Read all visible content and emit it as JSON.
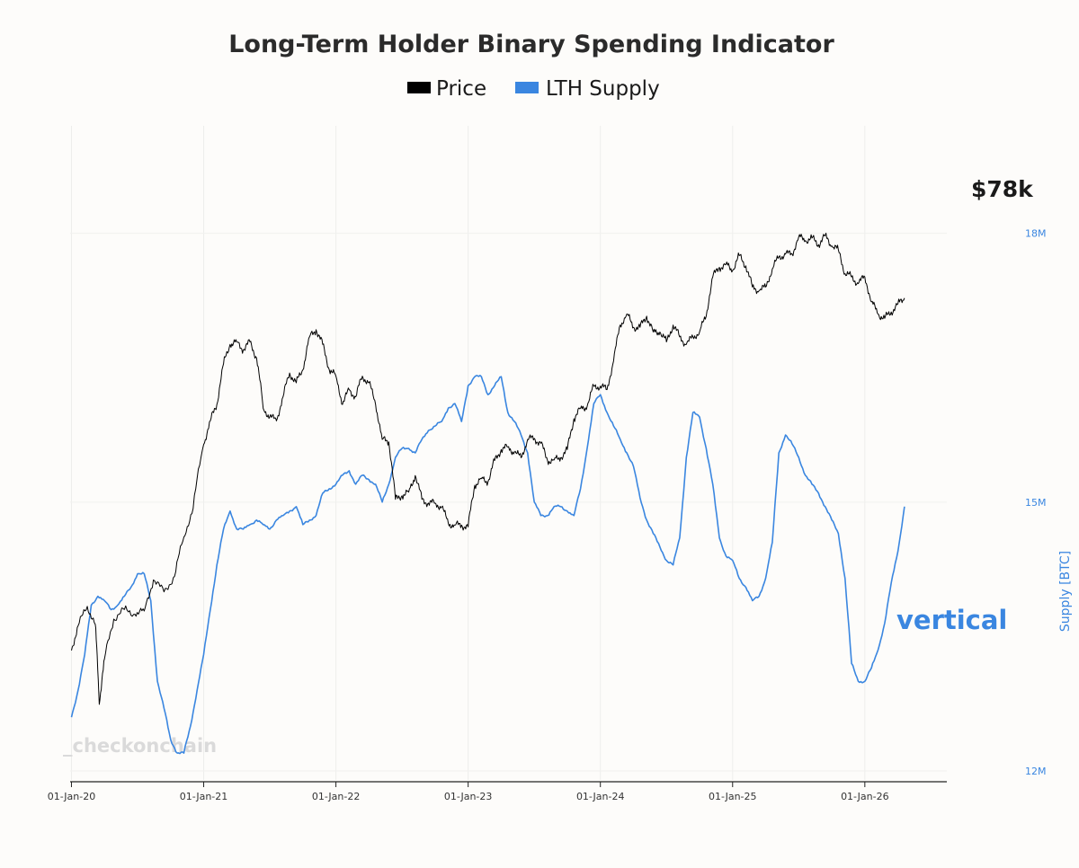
{
  "chart_data": {
    "type": "line",
    "title": "Long-Term Holder Binary Spending Indicator",
    "legend": [
      {
        "name": "Price",
        "color": "#000000"
      },
      {
        "name": "LTH Supply",
        "color": "#3a86e0"
      }
    ],
    "legend_position": "top-center",
    "xlabel": "",
    "x_ticks": [
      "01-Jan-20",
      "01-Jan-21",
      "01-Jan-22",
      "01-Jan-23",
      "01-Jan-24",
      "01-Jan-25",
      "01-Jan-26"
    ],
    "x_range": [
      2019.99,
      2026.62
    ],
    "y2_label": "Supply [BTC]",
    "y2_ticks": [
      "12M",
      "15M",
      "18M"
    ],
    "y2_range_millions": [
      11.9,
      19.2
    ],
    "price_label": "$78k",
    "supply_annotation": "vertical",
    "watermark": "_checkonchain",
    "series": [
      {
        "name": "Price",
        "color": "#000000",
        "scale": "log",
        "y_range_usd": [
          3000,
          250000
        ],
        "x": [
          2020.0,
          2020.05,
          2020.12,
          2020.18,
          2020.21,
          2020.25,
          2020.32,
          2020.4,
          2020.48,
          2020.55,
          2020.62,
          2020.7,
          2020.78,
          2020.85,
          2020.92,
          2021.0,
          2021.05,
          2021.1,
          2021.15,
          2021.2,
          2021.25,
          2021.3,
          2021.35,
          2021.4,
          2021.45,
          2021.5,
          2021.55,
          2021.6,
          2021.65,
          2021.7,
          2021.75,
          2021.8,
          2021.85,
          2021.9,
          2021.95,
          2022.0,
          2022.05,
          2022.1,
          2022.15,
          2022.2,
          2022.25,
          2022.3,
          2022.35,
          2022.4,
          2022.45,
          2022.5,
          2022.55,
          2022.6,
          2022.65,
          2022.7,
          2022.75,
          2022.8,
          2022.85,
          2022.9,
          2022.95,
          2023.0,
          2023.05,
          2023.1,
          2023.15,
          2023.2,
          2023.25,
          2023.3,
          2023.35,
          2023.4,
          2023.45,
          2023.5,
          2023.55,
          2023.6,
          2023.65,
          2023.7,
          2023.75,
          2023.8,
          2023.85,
          2023.9,
          2023.95,
          2024.0,
          2024.05,
          2024.1,
          2024.15,
          2024.2,
          2024.25,
          2024.3,
          2024.35,
          2024.4,
          2024.45,
          2024.5,
          2024.55,
          2024.6,
          2024.65,
          2024.7,
          2024.75,
          2024.8,
          2024.85,
          2024.9,
          2024.95,
          2025.0,
          2025.05,
          2025.1,
          2025.15,
          2025.2,
          2025.25,
          2025.3,
          2025.35,
          2025.4,
          2025.45,
          2025.5,
          2025.55,
          2025.6,
          2025.65,
          2025.7,
          2025.75,
          2025.8,
          2025.85,
          2025.9,
          2025.95,
          2026.0,
          2026.05,
          2026.1,
          2026.15,
          2026.2,
          2026.25,
          2026.3
        ],
        "values": [
          7200,
          8500,
          9700,
          8600,
          5000,
          6800,
          8900,
          9500,
          9200,
          9400,
          11600,
          10700,
          11900,
          15500,
          18800,
          29000,
          34000,
          38000,
          50000,
          57000,
          58000,
          55000,
          58000,
          52000,
          37000,
          35000,
          34000,
          40000,
          47000,
          44000,
          48000,
          60000,
          63000,
          57000,
          48000,
          46000,
          38000,
          42000,
          40000,
          46000,
          44000,
          38000,
          30000,
          29500,
          20000,
          20500,
          21000,
          23500,
          20000,
          19500,
          19500,
          19000,
          17000,
          16800,
          16800,
          16600,
          22000,
          23000,
          22500,
          26000,
          28000,
          28500,
          27500,
          26500,
          30000,
          30200,
          29200,
          26000,
          26100,
          26500,
          28000,
          34500,
          37000,
          37500,
          43000,
          43000,
          42000,
          51000,
          65000,
          70000,
          64000,
          64000,
          69000,
          62000,
          62000,
          58000,
          65000,
          60000,
          57000,
          60000,
          62000,
          69000,
          90000,
          96000,
          98000,
          94000,
          104000,
          97000,
          84000,
          82000,
          84000,
          95000,
          103000,
          105000,
          105000,
          118000,
          115000,
          117000,
          112000,
          119000,
          111000,
          108000,
          92000,
          90000,
          86000,
          90000,
          76000,
          70000,
          68000,
          71000,
          75000,
          78000
        ]
      },
      {
        "name": "LTH Supply",
        "color": "#3a86e0",
        "unit": "millions BTC",
        "x": [
          2020.0,
          2020.05,
          2020.1,
          2020.15,
          2020.2,
          2020.25,
          2020.3,
          2020.35,
          2020.4,
          2020.45,
          2020.5,
          2020.55,
          2020.6,
          2020.65,
          2020.7,
          2020.75,
          2020.8,
          2020.85,
          2020.9,
          2020.95,
          2021.0,
          2021.05,
          2021.1,
          2021.15,
          2021.2,
          2021.25,
          2021.3,
          2021.35,
          2021.4,
          2021.45,
          2021.5,
          2021.55,
          2021.6,
          2021.65,
          2021.7,
          2021.75,
          2021.8,
          2021.85,
          2021.9,
          2021.95,
          2022.0,
          2022.05,
          2022.1,
          2022.15,
          2022.2,
          2022.25,
          2022.3,
          2022.35,
          2022.4,
          2022.45,
          2022.5,
          2022.55,
          2022.6,
          2022.65,
          2022.7,
          2022.75,
          2022.8,
          2022.85,
          2022.9,
          2022.95,
          2023.0,
          2023.05,
          2023.1,
          2023.15,
          2023.2,
          2023.25,
          2023.3,
          2023.35,
          2023.4,
          2023.45,
          2023.5,
          2023.55,
          2023.6,
          2023.65,
          2023.7,
          2023.75,
          2023.8,
          2023.85,
          2023.9,
          2023.95,
          2024.0,
          2024.05,
          2024.1,
          2024.15,
          2024.2,
          2024.25,
          2024.3,
          2024.35,
          2024.4,
          2024.45,
          2024.5,
          2024.55,
          2024.6,
          2024.65,
          2024.7,
          2024.75,
          2024.8,
          2024.85,
          2024.9,
          2024.95,
          2025.0,
          2025.05,
          2025.1,
          2025.15,
          2025.2,
          2025.25,
          2025.3,
          2025.35,
          2025.4,
          2025.45,
          2025.5,
          2025.55,
          2025.6,
          2025.65,
          2025.7,
          2025.75,
          2025.8,
          2025.85,
          2025.9,
          2025.95,
          2026.0,
          2026.05,
          2026.1,
          2026.15,
          2026.2,
          2026.25,
          2026.3
        ],
        "values": [
          12.6,
          12.9,
          13.3,
          13.85,
          13.95,
          13.9,
          13.8,
          13.85,
          13.95,
          14.05,
          14.2,
          14.2,
          13.9,
          13.0,
          12.7,
          12.35,
          12.2,
          12.2,
          12.5,
          12.9,
          13.3,
          13.8,
          14.3,
          14.7,
          14.9,
          14.7,
          14.7,
          14.75,
          14.8,
          14.75,
          14.7,
          14.8,
          14.85,
          14.9,
          14.95,
          14.75,
          14.8,
          14.85,
          15.1,
          15.15,
          15.2,
          15.3,
          15.35,
          15.2,
          15.3,
          15.25,
          15.2,
          15.0,
          15.2,
          15.5,
          15.6,
          15.6,
          15.55,
          15.7,
          15.8,
          15.85,
          15.9,
          16.05,
          16.1,
          15.9,
          16.3,
          16.4,
          16.4,
          16.2,
          16.3,
          16.4,
          16.0,
          15.9,
          15.75,
          15.55,
          15.0,
          14.85,
          14.85,
          14.95,
          14.95,
          14.9,
          14.85,
          15.15,
          15.6,
          16.1,
          16.2,
          16.0,
          15.85,
          15.7,
          15.55,
          15.4,
          15.05,
          14.8,
          14.65,
          14.5,
          14.35,
          14.3,
          14.6,
          15.5,
          16.0,
          15.95,
          15.6,
          15.2,
          14.6,
          14.4,
          14.35,
          14.15,
          14.05,
          13.9,
          13.95,
          14.15,
          14.55,
          15.55,
          15.75,
          15.65,
          15.5,
          15.3,
          15.2,
          15.1,
          14.95,
          14.8,
          14.65,
          14.15,
          13.2,
          13.0,
          13.0,
          13.15,
          13.35,
          13.65,
          14.1,
          14.45,
          14.95
        ]
      }
    ]
  }
}
